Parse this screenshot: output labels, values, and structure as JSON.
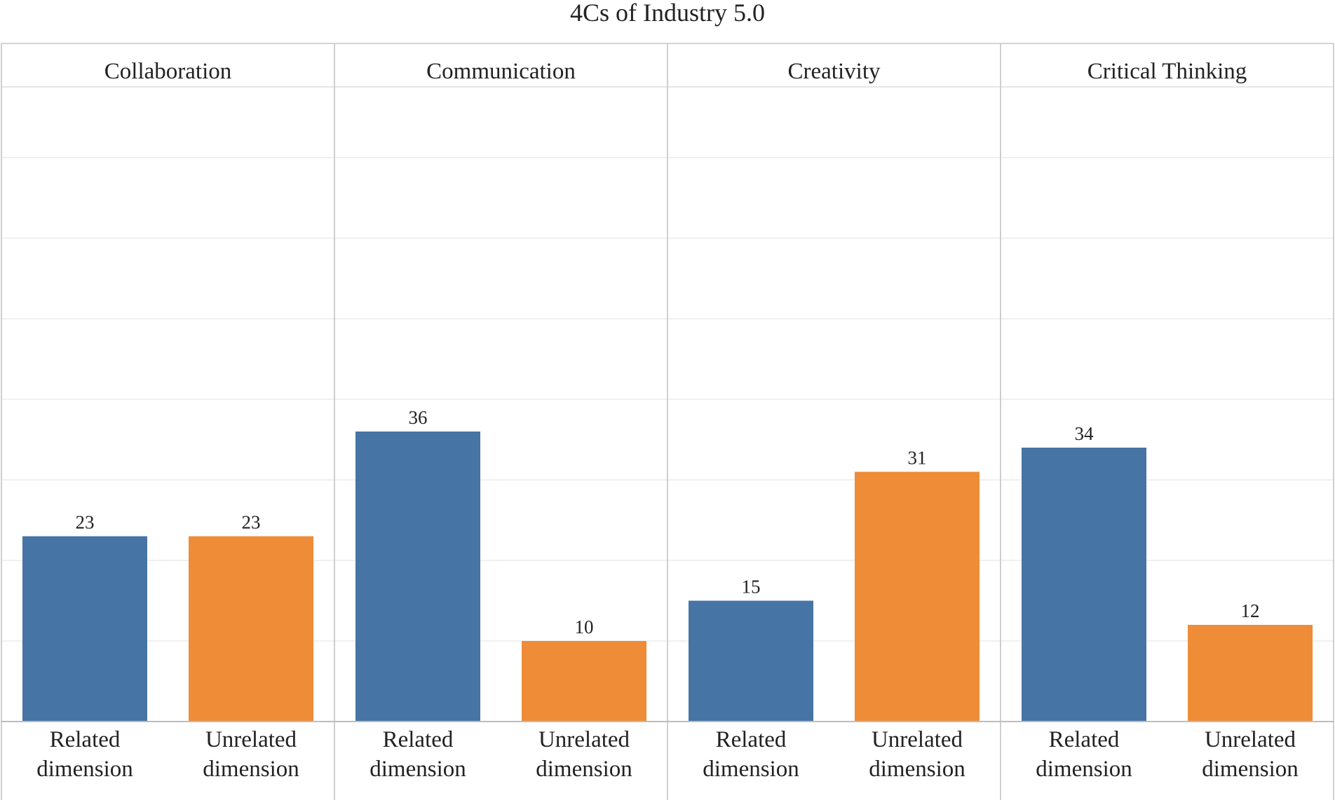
{
  "chart_data": {
    "type": "bar",
    "title": "4Cs of Industry 5.0",
    "categories": [
      "Related dimension",
      "Unrelated dimension"
    ],
    "series_colors": {
      "Related dimension": "#4674a4",
      "Unrelated dimension": "#ee8c37"
    },
    "panels": [
      {
        "name": "Collaboration",
        "values": [
          23,
          23
        ]
      },
      {
        "name": "Communication",
        "values": [
          36,
          10
        ]
      },
      {
        "name": "Creativity",
        "values": [
          15,
          31
        ]
      },
      {
        "name": "Critical Thinking",
        "values": [
          34,
          12
        ]
      }
    ],
    "ylim": [
      0,
      40
    ],
    "gridlines": true,
    "xlabel": "",
    "ylabel": ""
  }
}
